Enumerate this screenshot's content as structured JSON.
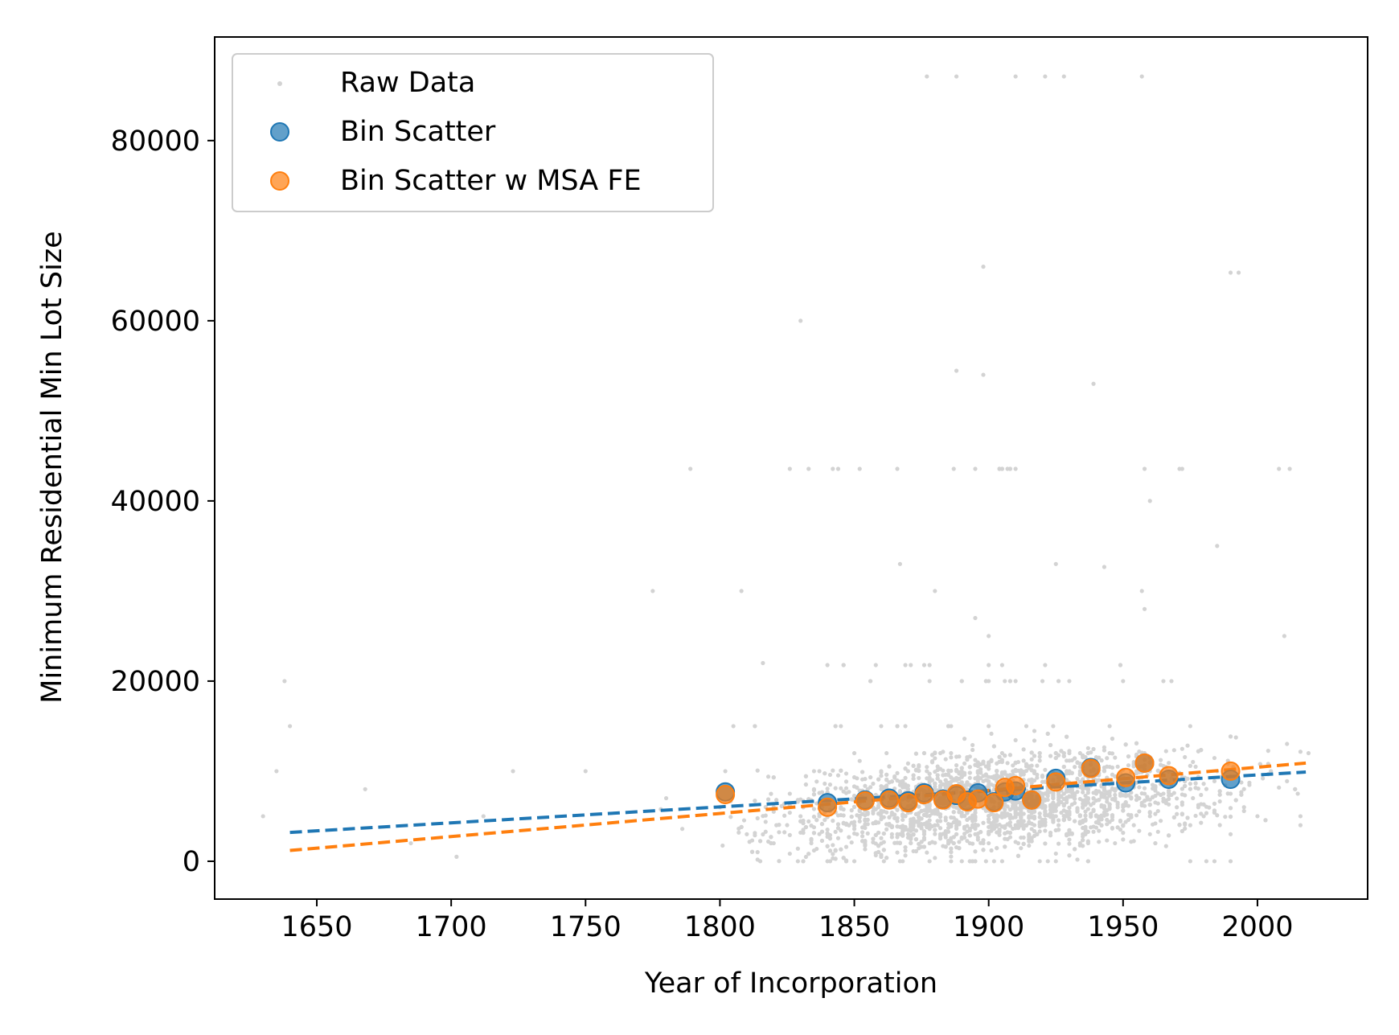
{
  "chart_data": {
    "type": "scatter",
    "xlabel": "Year of Incorporation",
    "ylabel": "Minimum Residential Min Lot Size",
    "xlim": [
      1612,
      2041
    ],
    "ylim": [
      -4200,
      91500
    ],
    "xticks": [
      1650,
      1700,
      1750,
      1800,
      1850,
      1900,
      1950,
      2000
    ],
    "yticks": [
      0,
      20000,
      40000,
      60000,
      80000
    ],
    "legend_position": "upper-left",
    "colors": {
      "raw": "#d3d3d3",
      "bin_scatter": "#1f77b4",
      "bin_scatter_fe": "#ff7f0e"
    },
    "series": [
      {
        "name": "Raw Data",
        "kind": "points",
        "points_sample": [
          [
            1630,
            5000
          ],
          [
            1635,
            10000
          ],
          [
            1638,
            20000
          ],
          [
            1640,
            15000
          ],
          [
            1668,
            8000
          ],
          [
            1685,
            2000
          ],
          [
            1702,
            500
          ],
          [
            1712,
            5000
          ],
          [
            1723,
            10000
          ],
          [
            1750,
            10000
          ],
          [
            1775,
            30000
          ],
          [
            1789,
            43560
          ],
          [
            1805,
            15000
          ],
          [
            1808,
            30000
          ],
          [
            1830,
            60000
          ],
          [
            1826,
            43560
          ],
          [
            1833,
            43560
          ],
          [
            1844,
            43560
          ],
          [
            1867,
            33000
          ],
          [
            1866,
            43560
          ],
          [
            1888,
            87120
          ],
          [
            1877,
            87120
          ],
          [
            1888,
            54450
          ],
          [
            1898,
            66000
          ],
          [
            1898,
            54000
          ],
          [
            1904,
            43560
          ],
          [
            1910,
            87120
          ],
          [
            1921,
            87120
          ],
          [
            1928,
            87120
          ],
          [
            1939,
            53000
          ],
          [
            1957,
            87120
          ],
          [
            1958,
            43560
          ],
          [
            1960,
            40000
          ],
          [
            1972,
            43560
          ],
          [
            1990,
            65340
          ],
          [
            1993,
            65340
          ],
          [
            2008,
            43560
          ],
          [
            2012,
            43560
          ],
          [
            2010,
            25000
          ],
          [
            1985,
            35000
          ],
          [
            1957,
            30000
          ],
          [
            1958,
            28000
          ],
          [
            1943,
            32670
          ],
          [
            1925,
            33000
          ],
          [
            1880,
            30000
          ],
          [
            1895,
            27000
          ],
          [
            1900,
            25000
          ],
          [
            1816,
            22000
          ],
          [
            1840,
            21780
          ],
          [
            1876,
            21780
          ],
          [
            1920,
            20000
          ],
          [
            1930,
            20000
          ],
          [
            1950,
            20000
          ],
          [
            1965,
            20000
          ],
          [
            1975,
            15000
          ],
          [
            1860,
            15000
          ],
          [
            1885,
            15000
          ],
          [
            1900,
            15000
          ],
          [
            1925,
            12000
          ],
          [
            1945,
            12000
          ],
          [
            1850,
            12000
          ],
          [
            1870,
            10000
          ],
          [
            1890,
            10000
          ],
          [
            1910,
            10000
          ],
          [
            1930,
            10000
          ],
          [
            1955,
            10000
          ],
          [
            1985,
            10000
          ],
          [
            2005,
            10000
          ],
          [
            1835,
            8000
          ],
          [
            1855,
            8000
          ],
          [
            1880,
            8000
          ],
          [
            1900,
            8000
          ],
          [
            1920,
            7500
          ],
          [
            1940,
            7500
          ],
          [
            1965,
            7500
          ],
          [
            1990,
            7500
          ],
          [
            2015,
            7500
          ],
          [
            1780,
            7000
          ],
          [
            1800,
            6000
          ],
          [
            1820,
            6000
          ],
          [
            1845,
            6000
          ],
          [
            1865,
            6000
          ],
          [
            1885,
            6000
          ],
          [
            1905,
            6000
          ],
          [
            1925,
            6000
          ],
          [
            1945,
            6000
          ],
          [
            1970,
            6000
          ],
          [
            1995,
            6000
          ],
          [
            1830,
            5000
          ],
          [
            1860,
            5000
          ],
          [
            1890,
            5000
          ],
          [
            1915,
            5000
          ],
          [
            1940,
            5000
          ],
          [
            1960,
            5000
          ],
          [
            1980,
            5000
          ],
          [
            2000,
            5000
          ],
          [
            2016,
            5000
          ],
          [
            1850,
            4000
          ],
          [
            1875,
            4000
          ],
          [
            1895,
            4000
          ],
          [
            1920,
            4000
          ],
          [
            1950,
            4000
          ],
          [
            1975,
            4000
          ],
          [
            1810,
            3000
          ],
          [
            1840,
            3000
          ],
          [
            1870,
            3000
          ],
          [
            1900,
            3000
          ],
          [
            1930,
            3000
          ],
          [
            1960,
            3000
          ],
          [
            1990,
            3000
          ],
          [
            1815,
            0
          ],
          [
            1840,
            0
          ],
          [
            1850,
            0
          ],
          [
            1868,
            0
          ],
          [
            1878,
            0
          ],
          [
            1890,
            0
          ],
          [
            1905,
            0
          ],
          [
            1925,
            0
          ],
          [
            1975,
            0
          ],
          [
            1990,
            0
          ],
          [
            2019,
            12000
          ],
          [
            2016,
            4000
          ]
        ]
      },
      {
        "name": "Bin Scatter",
        "points": [
          [
            1802,
            7700
          ],
          [
            1840,
            6500
          ],
          [
            1854,
            6800
          ],
          [
            1863,
            7000
          ],
          [
            1870,
            6700
          ],
          [
            1876,
            7600
          ],
          [
            1883,
            6900
          ],
          [
            1888,
            7300
          ],
          [
            1892,
            6700
          ],
          [
            1896,
            7600
          ],
          [
            1902,
            6600
          ],
          [
            1906,
            7700
          ],
          [
            1910,
            7800
          ],
          [
            1916,
            6800
          ],
          [
            1925,
            9200
          ],
          [
            1938,
            10400
          ],
          [
            1951,
            8700
          ],
          [
            1958,
            10900
          ],
          [
            1967,
            9100
          ],
          [
            1990,
            9100
          ]
        ],
        "fit_line": {
          "x": [
            1640,
            2018
          ],
          "y": [
            3200,
            9900
          ]
        }
      },
      {
        "name": "Bin Scatter w MSA FE",
        "points": [
          [
            1802,
            7400
          ],
          [
            1840,
            6000
          ],
          [
            1854,
            6700
          ],
          [
            1863,
            6800
          ],
          [
            1870,
            6500
          ],
          [
            1876,
            7400
          ],
          [
            1883,
            6800
          ],
          [
            1888,
            7500
          ],
          [
            1892,
            6600
          ],
          [
            1896,
            6900
          ],
          [
            1902,
            6500
          ],
          [
            1906,
            8200
          ],
          [
            1910,
            8400
          ],
          [
            1916,
            6800
          ],
          [
            1925,
            8800
          ],
          [
            1938,
            10300
          ],
          [
            1951,
            9300
          ],
          [
            1958,
            10900
          ],
          [
            1967,
            9500
          ],
          [
            1990,
            10000
          ]
        ],
        "fit_line": {
          "x": [
            1640,
            2018
          ],
          "y": [
            1200,
            10900
          ]
        }
      }
    ]
  }
}
